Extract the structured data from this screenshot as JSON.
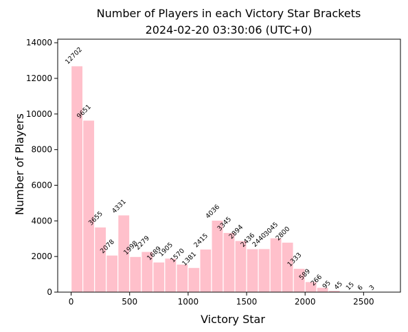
{
  "chart_data": {
    "type": "bar",
    "title": "Number of Players in each Victory Star Brackets",
    "subtitle": "2024-02-20 03:30:06 (UTC+0)",
    "xlabel": "Victory Star",
    "ylabel": "Number of Players",
    "xlim": [
      -115,
      2815
    ],
    "ylim": [
      0,
      14200
    ],
    "xticks": [
      0,
      500,
      1000,
      1500,
      2000,
      2500
    ],
    "yticks": [
      0,
      2000,
      4000,
      6000,
      8000,
      10000,
      12000,
      14000
    ],
    "bin_width": 100,
    "bar_color": "#ffc0cb",
    "bar_edge_color": "#ffffff",
    "grid": false,
    "bins": [
      {
        "x": 0,
        "value": 12702
      },
      {
        "x": 100,
        "value": 9651
      },
      {
        "x": 200,
        "value": 3655
      },
      {
        "x": 300,
        "value": 2078
      },
      {
        "x": 400,
        "value": 4331
      },
      {
        "x": 500,
        "value": 1998
      },
      {
        "x": 600,
        "value": 2279
      },
      {
        "x": 700,
        "value": 1689
      },
      {
        "x": 800,
        "value": 1905
      },
      {
        "x": 900,
        "value": 1570
      },
      {
        "x": 1000,
        "value": 1381
      },
      {
        "x": 1100,
        "value": 2415
      },
      {
        "x": 1200,
        "value": 4036
      },
      {
        "x": 1300,
        "value": 3345
      },
      {
        "x": 1400,
        "value": 2894
      },
      {
        "x": 1500,
        "value": 2436
      },
      {
        "x": 1600,
        "value": 2440
      },
      {
        "x": 1700,
        "value": 3045
      },
      {
        "x": 1800,
        "value": 2800
      },
      {
        "x": 1900,
        "value": 1333
      },
      {
        "x": 2000,
        "value": 589
      },
      {
        "x": 2100,
        "value": 266
      },
      {
        "x": 2200,
        "value": 95
      },
      {
        "x": 2300,
        "value": 45
      },
      {
        "x": 2400,
        "value": 15
      },
      {
        "x": 2500,
        "value": 6
      },
      {
        "x": 2600,
        "value": 3
      }
    ]
  }
}
